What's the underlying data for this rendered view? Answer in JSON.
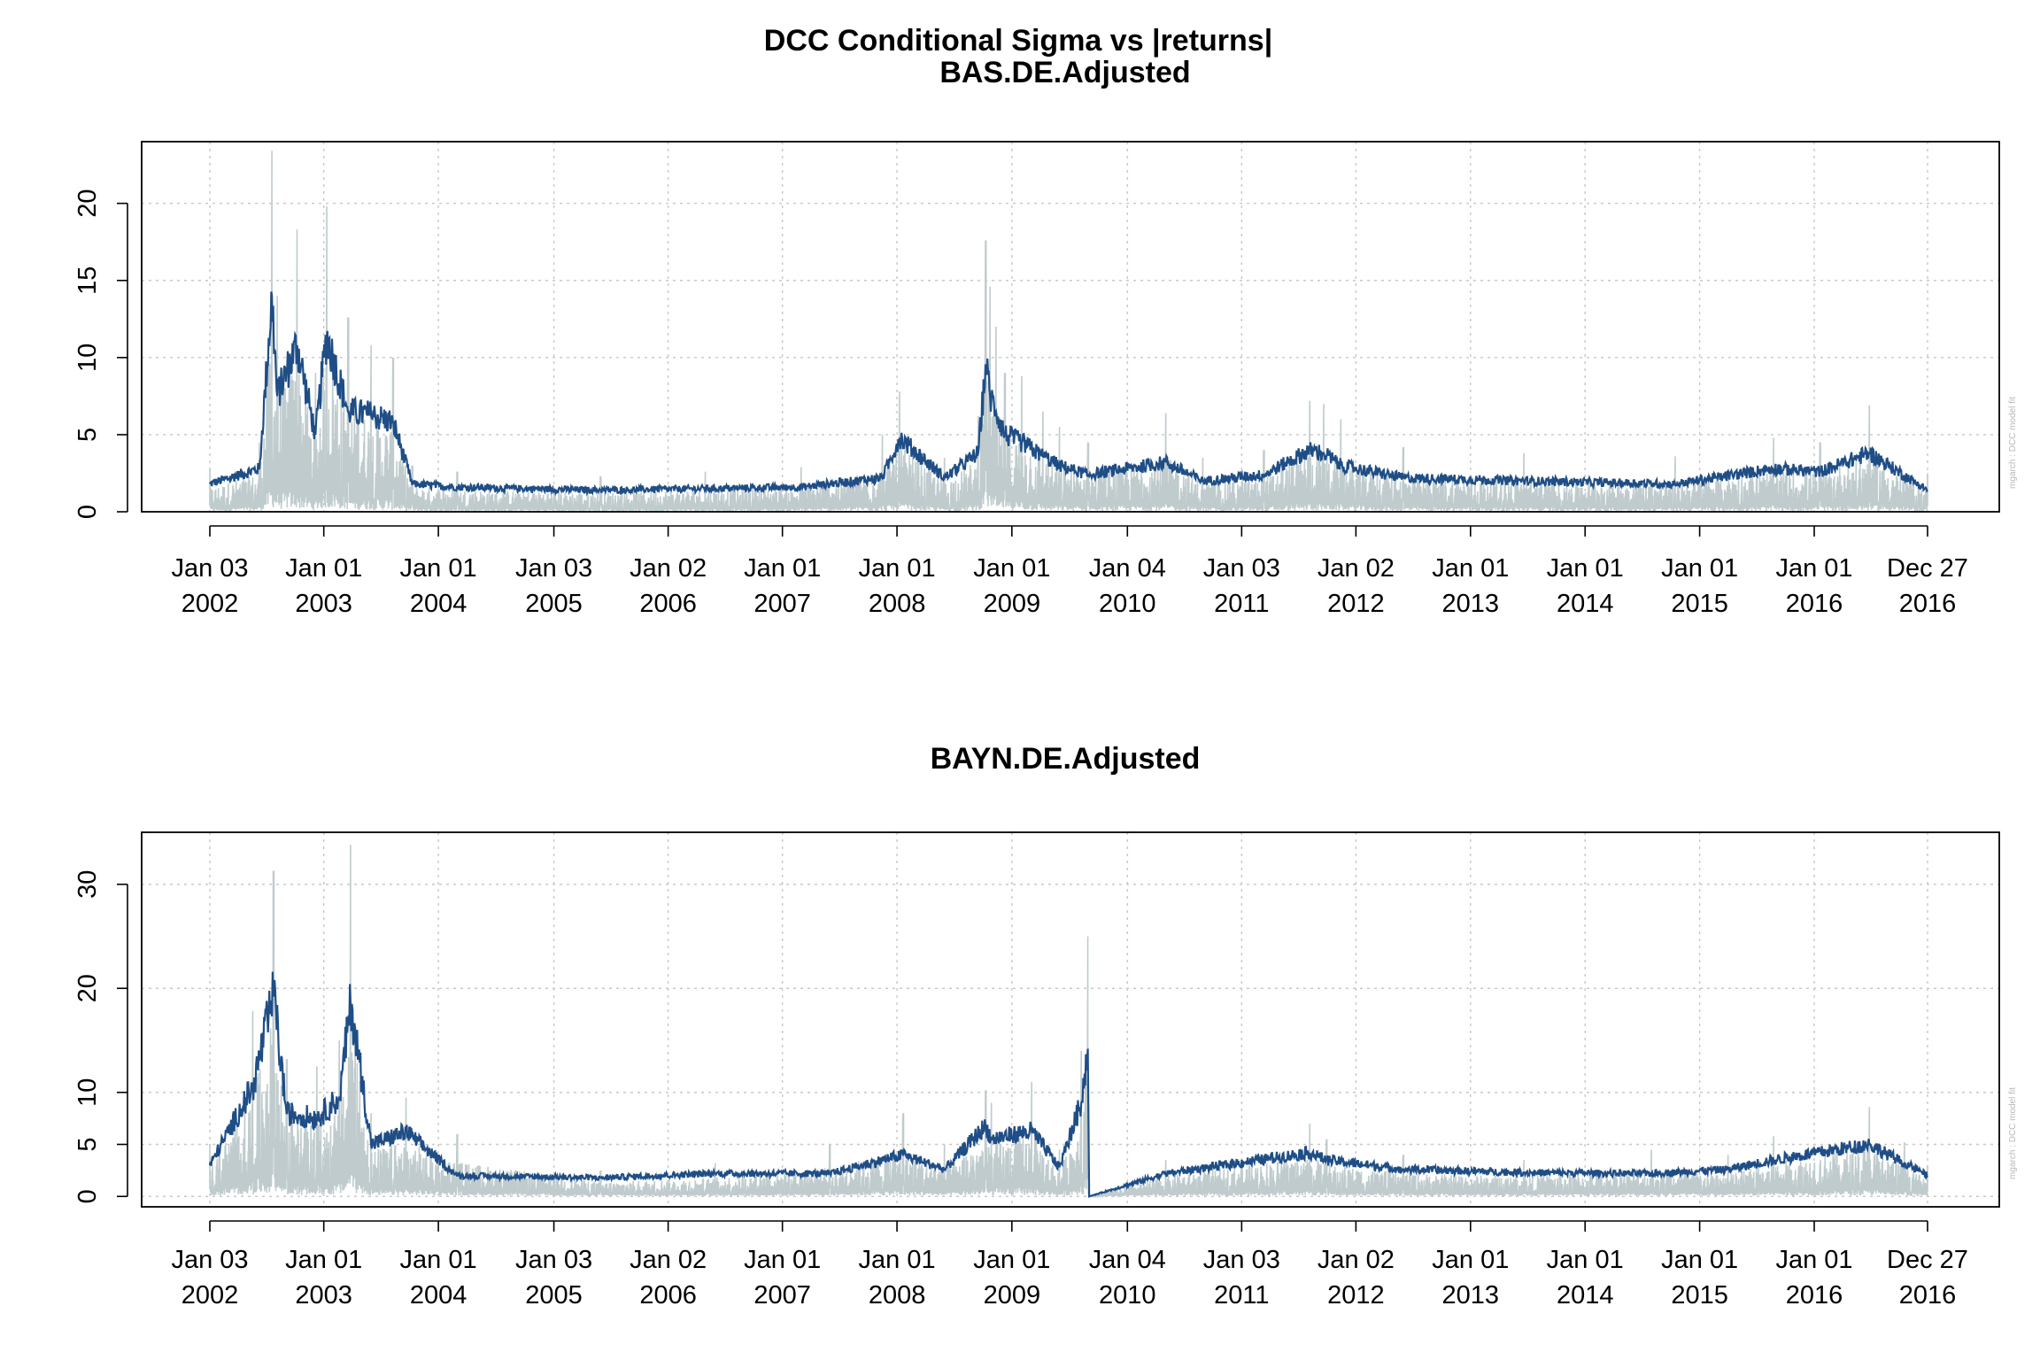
{
  "figure_title": "DCC Conditional Sigma vs |returns|",
  "side_note": "mgarch :  DCC model fit",
  "colors": {
    "returns": "#bfcbcc",
    "sigma": "#1f4e86",
    "grid": "#c8c8c8"
  },
  "x_tick_labels": [
    [
      "Jan 03",
      "2002"
    ],
    [
      "Jan 01",
      "2003"
    ],
    [
      "Jan 01",
      "2004"
    ],
    [
      "Jan 03",
      "2005"
    ],
    [
      "Jan 02",
      "2006"
    ],
    [
      "Jan 01",
      "2007"
    ],
    [
      "Jan 01",
      "2008"
    ],
    [
      "Jan 01",
      "2009"
    ],
    [
      "Jan 04",
      "2010"
    ],
    [
      "Jan 03",
      "2011"
    ],
    [
      "Jan 02",
      "2012"
    ],
    [
      "Jan 01",
      "2013"
    ],
    [
      "Jan 01",
      "2014"
    ],
    [
      "Jan 01",
      "2015"
    ],
    [
      "Jan 01",
      "2016"
    ],
    [
      "Dec 27",
      "2016"
    ]
  ],
  "chart_data": [
    {
      "type": "line",
      "title": "BAS.DE.Adjusted",
      "x_range": [
        "2002-01-03",
        "2016-12-27"
      ],
      "ylim": [
        0,
        24
      ],
      "yticks": [
        0,
        5,
        10,
        15,
        20
      ],
      "grid": true,
      "series": [
        {
          "role": "|returns|",
          "x": [
            "2002-01-03",
            "2002-06-10",
            "2002-07-20",
            "2002-08-05",
            "2002-10-08",
            "2002-12-05",
            "2003-01-10",
            "2003-03-20",
            "2003-06-01",
            "2003-08-10",
            "2003-10-10",
            "2004-03-01",
            "2005-06-01",
            "2006-05-01",
            "2007-03-01",
            "2007-11-15",
            "2008-01-10",
            "2008-06-01",
            "2008-09-15",
            "2008-10-10",
            "2008-10-24",
            "2008-11-12",
            "2008-12-10",
            "2009-02-01",
            "2009-04-10",
            "2009-06-01",
            "2009-09-01",
            "2010-05-07",
            "2010-09-01",
            "2011-03-15",
            "2011-08-08",
            "2011-09-22",
            "2011-11-15",
            "2012-06-01",
            "2013-06-20",
            "2014-10-15",
            "2015-08-24",
            "2016-01-20",
            "2016-06-24",
            "2016-12-27"
          ],
          "y": [
            2.8,
            4.5,
            23.4,
            14.0,
            18.3,
            9.0,
            19.8,
            12.6,
            10.8,
            10.0,
            3.0,
            2.6,
            2.3,
            2.6,
            2.9,
            5.0,
            7.8,
            3.5,
            6.2,
            17.6,
            14.6,
            12.0,
            9.0,
            8.8,
            6.5,
            5.5,
            4.5,
            6.4,
            3.5,
            4.0,
            7.2,
            7.0,
            6.0,
            4.2,
            3.8,
            3.6,
            4.8,
            4.5,
            6.9,
            2.5
          ]
        },
        {
          "role": "sigma",
          "x": [
            "2002-01-03",
            "2002-06-10",
            "2002-07-20",
            "2002-08-05",
            "2002-10-08",
            "2002-12-05",
            "2003-01-10",
            "2003-03-20",
            "2003-06-01",
            "2003-08-10",
            "2003-10-10",
            "2004-03-01",
            "2005-06-01",
            "2006-05-01",
            "2007-03-01",
            "2007-11-15",
            "2008-01-10",
            "2008-06-01",
            "2008-09-15",
            "2008-10-10",
            "2008-10-24",
            "2008-11-12",
            "2008-12-10",
            "2009-02-01",
            "2009-04-10",
            "2009-06-01",
            "2009-09-01",
            "2010-05-07",
            "2010-09-01",
            "2011-03-15",
            "2011-08-08",
            "2011-09-22",
            "2011-11-15",
            "2012-06-01",
            "2013-06-20",
            "2014-10-15",
            "2015-08-24",
            "2016-01-20",
            "2016-06-24",
            "2016-12-27"
          ],
          "y": [
            1.8,
            2.8,
            14.0,
            7.5,
            10.8,
            5.0,
            11.4,
            6.5,
            6.3,
            5.8,
            1.8,
            1.6,
            1.4,
            1.5,
            1.6,
            2.2,
            4.8,
            2.2,
            3.8,
            9.5,
            7.5,
            6.5,
            5.0,
            4.5,
            3.6,
            3.0,
            2.4,
            3.2,
            2.0,
            2.4,
            4.0,
            3.8,
            3.0,
            2.2,
            2.0,
            1.8,
            2.8,
            2.6,
            3.8,
            1.4
          ]
        }
      ]
    },
    {
      "type": "line",
      "title": "BAYN.DE.Adjusted",
      "x_range": [
        "2002-01-03",
        "2016-12-27"
      ],
      "ylim": [
        -1,
        35
      ],
      "yticks": [
        0,
        5,
        10,
        20,
        30
      ],
      "grid": true,
      "series": [
        {
          "role": "|returns|",
          "x": [
            "2002-01-03",
            "2002-05-20",
            "2002-07-25",
            "2002-09-05",
            "2002-12-10",
            "2003-02-20",
            "2003-03-28",
            "2003-06-01",
            "2003-09-20",
            "2004-03-01",
            "2005-06-01",
            "2006-06-01",
            "2007-06-01",
            "2008-01-21",
            "2008-06-01",
            "2008-10-10",
            "2008-10-28",
            "2009-03-05",
            "2009-06-01",
            "2009-08-10",
            "2009-08-31",
            "2009-09-04",
            "2010-05-07",
            "2011-08-08",
            "2011-10-01",
            "2012-06-01",
            "2013-06-20",
            "2014-08-01",
            "2015-04-01",
            "2015-08-24",
            "2016-06-24",
            "2016-10-15",
            "2016-12-27"
          ],
          "y": [
            5.0,
            17.8,
            31.3,
            13.2,
            12.5,
            15.0,
            33.8,
            8.0,
            9.5,
            6.0,
            2.5,
            3.2,
            5.0,
            8.0,
            5.0,
            10.2,
            9.0,
            11.0,
            4.5,
            14.0,
            25.0,
            0.0,
            3.5,
            7.0,
            5.5,
            4.0,
            3.5,
            4.5,
            4.0,
            5.8,
            8.6,
            5.2,
            3.0
          ]
        },
        {
          "role": "sigma",
          "x": [
            "2002-01-03",
            "2002-05-20",
            "2002-07-25",
            "2002-09-05",
            "2002-12-10",
            "2003-02-20",
            "2003-03-28",
            "2003-06-01",
            "2003-09-20",
            "2004-03-01",
            "2005-06-01",
            "2006-06-01",
            "2007-06-01",
            "2008-01-21",
            "2008-06-01",
            "2008-10-10",
            "2008-10-28",
            "2009-03-05",
            "2009-06-01",
            "2009-08-10",
            "2009-08-31",
            "2009-09-04",
            "2010-05-07",
            "2011-08-08",
            "2011-10-01",
            "2012-06-01",
            "2013-06-20",
            "2014-08-01",
            "2015-04-01",
            "2015-08-24",
            "2016-06-24",
            "2016-10-15",
            "2016-12-27"
          ],
          "y": [
            3.0,
            10.5,
            19.3,
            8.0,
            7.5,
            9.5,
            18.7,
            5.0,
            6.2,
            2.0,
            1.8,
            2.2,
            2.2,
            4.0,
            2.6,
            6.8,
            5.5,
            6.3,
            2.8,
            9.0,
            14.2,
            0.0,
            2.2,
            4.2,
            3.5,
            2.6,
            2.3,
            2.2,
            2.6,
            3.5,
            5.0,
            3.2,
            2.0
          ]
        }
      ]
    }
  ]
}
